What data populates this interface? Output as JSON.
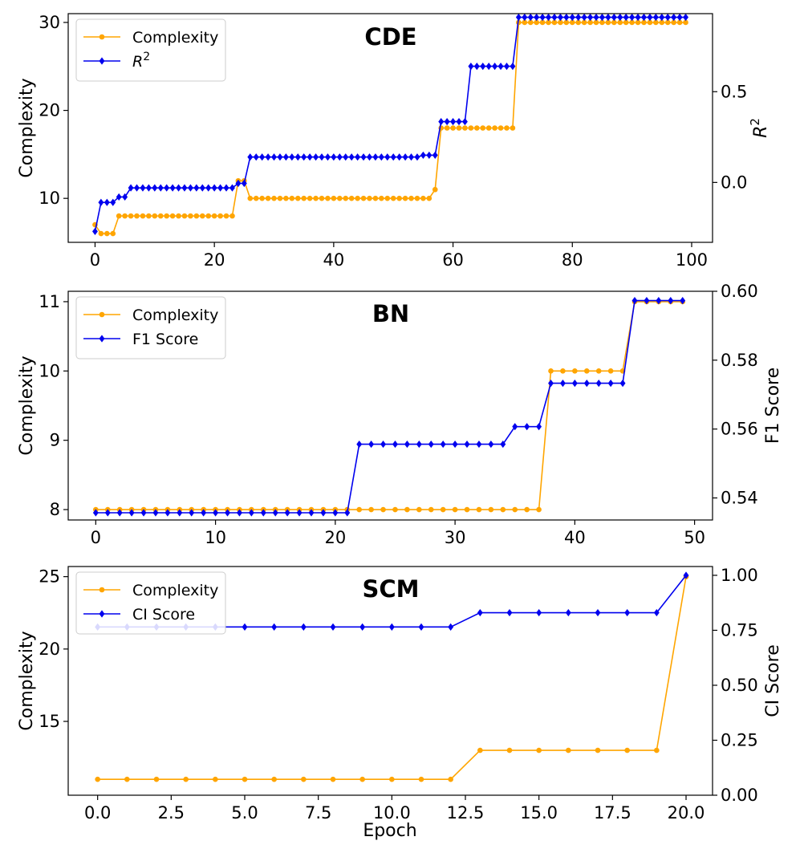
{
  "colors": {
    "complexity": "#FFA500",
    "metric": "#0000EE",
    "axis": "#000000",
    "background": "#ffffff"
  },
  "chart_data": [
    {
      "id": "cde",
      "type": "line",
      "title": "CDE",
      "xlabel": "",
      "ylabel_left": "Complexity",
      "ylabel_right": "R²",
      "xlim": [
        -4.5,
        103.5
      ],
      "ylim_left": [
        5,
        31
      ],
      "ylim_right": [
        -0.33,
        0.93
      ],
      "x_ticks": [
        0,
        20,
        40,
        60,
        80,
        100
      ],
      "x_tick_labels": [
        "0",
        "20",
        "40",
        "60",
        "80",
        "100"
      ],
      "y_ticks_left": [
        10,
        20,
        30
      ],
      "y_tick_labels_left": [
        "10",
        "20",
        "30"
      ],
      "y_ticks_right": [
        0.0,
        0.5
      ],
      "y_tick_labels_right": [
        "0.0",
        "0.5"
      ],
      "legend": {
        "position": "upper-left",
        "entries": [
          "Complexity",
          "R²"
        ]
      },
      "series": [
        {
          "name": "Complexity",
          "axis": "left",
          "marker": "circle",
          "segments": [
            {
              "from": 0,
              "to": 0,
              "value": 7
            },
            {
              "from": 1,
              "to": 3,
              "value": 6
            },
            {
              "from": 4,
              "to": 23,
              "value": 8
            },
            {
              "from": 24,
              "to": 25,
              "value": 12
            },
            {
              "from": 26,
              "to": 56,
              "value": 10
            },
            {
              "from": 57,
              "to": 57,
              "value": 11
            },
            {
              "from": 58,
              "to": 70,
              "value": 18
            },
            {
              "from": 71,
              "to": 99,
              "value": 30
            }
          ]
        },
        {
          "name": "R²",
          "axis": "right",
          "marker": "diamond",
          "segments": [
            {
              "from": 0,
              "to": 0,
              "value": -0.27
            },
            {
              "from": 1,
              "to": 3,
              "value": -0.11
            },
            {
              "from": 4,
              "to": 5,
              "value": -0.08
            },
            {
              "from": 6,
              "to": 23,
              "value": -0.03
            },
            {
              "from": 24,
              "to": 25,
              "value": -0.005
            },
            {
              "from": 26,
              "to": 54,
              "value": 0.14
            },
            {
              "from": 55,
              "to": 57,
              "value": 0.15
            },
            {
              "from": 58,
              "to": 62,
              "value": 0.335
            },
            {
              "from": 63,
              "to": 70,
              "value": 0.64
            },
            {
              "from": 71,
              "to": 99,
              "value": 0.91
            }
          ]
        }
      ]
    },
    {
      "id": "bn",
      "type": "line",
      "title": "BN",
      "xlabel": "",
      "ylabel_left": "Complexity",
      "ylabel_right": "F1 Score",
      "xlim": [
        -2.3,
        51.5
      ],
      "ylim_left": [
        7.85,
        11.15
      ],
      "ylim_right": [
        0.5336,
        0.6
      ],
      "x_ticks": [
        0,
        10,
        20,
        30,
        40,
        50
      ],
      "x_tick_labels": [
        "0",
        "10",
        "20",
        "30",
        "40",
        "50"
      ],
      "y_ticks_left": [
        8,
        9,
        10,
        11
      ],
      "y_tick_labels_left": [
        "8",
        "9",
        "10",
        "11"
      ],
      "y_ticks_right": [
        0.54,
        0.56,
        0.58,
        0.6
      ],
      "y_tick_labels_right": [
        "0.54",
        "0.56",
        "0.58",
        "0.60"
      ],
      "legend": {
        "position": "upper-left",
        "entries": [
          "Complexity",
          "F1 Score"
        ]
      },
      "series": [
        {
          "name": "Complexity",
          "axis": "left",
          "marker": "circle",
          "segments": [
            {
              "from": 0,
              "to": 37,
              "value": 8
            },
            {
              "from": 38,
              "to": 44,
              "value": 10
            },
            {
              "from": 45,
              "to": 49,
              "value": 11
            }
          ]
        },
        {
          "name": "F1 Score",
          "axis": "right",
          "marker": "diamond",
          "segments": [
            {
              "from": 0,
              "to": 21,
              "value": 0.5357
            },
            {
              "from": 22,
              "to": 34,
              "value": 0.5556
            },
            {
              "from": 35,
              "to": 37,
              "value": 0.5607
            },
            {
              "from": 38,
              "to": 44,
              "value": 0.5733
            },
            {
              "from": 45,
              "to": 49,
              "value": 0.5973
            }
          ]
        }
      ]
    },
    {
      "id": "scm",
      "type": "line",
      "title": "SCM",
      "xlabel": "Epoch",
      "ylabel_left": "Complexity",
      "ylabel_right": "CI Score",
      "xlim": [
        -1.0,
        20.9
      ],
      "ylim_left": [
        9.9,
        25.7
      ],
      "ylim_right": [
        0.0,
        1.04
      ],
      "x_ticks": [
        0,
        2.5,
        5,
        7.5,
        10,
        12.5,
        15,
        17.5,
        20
      ],
      "x_tick_labels": [
        "0.0",
        "2.5",
        "5.0",
        "7.5",
        "10.0",
        "12.5",
        "15.0",
        "17.5",
        "20.0"
      ],
      "y_ticks_left": [
        15,
        20,
        25
      ],
      "y_tick_labels_left": [
        "15",
        "20",
        "25"
      ],
      "y_ticks_right": [
        0.0,
        0.25,
        0.5,
        0.75,
        1.0
      ],
      "y_tick_labels_right": [
        "0.00",
        "0.25",
        "0.50",
        "0.75",
        "1.00"
      ],
      "legend": {
        "position": "upper-left",
        "entries": [
          "Complexity",
          "CI Score"
        ]
      },
      "series": [
        {
          "name": "Complexity",
          "axis": "left",
          "marker": "circle",
          "segments": [
            {
              "from": 0,
              "to": 12,
              "value": 11
            },
            {
              "from": 13,
              "to": 19,
              "value": 13
            },
            {
              "from": 20,
              "to": 20,
              "value": 25
            }
          ]
        },
        {
          "name": "CI Score",
          "axis": "right",
          "marker": "diamond",
          "segments": [
            {
              "from": 0,
              "to": 12,
              "value": 0.765
            },
            {
              "from": 13,
              "to": 19,
              "value": 0.83
            },
            {
              "from": 20,
              "to": 20,
              "value": 1.0
            }
          ]
        }
      ]
    }
  ]
}
